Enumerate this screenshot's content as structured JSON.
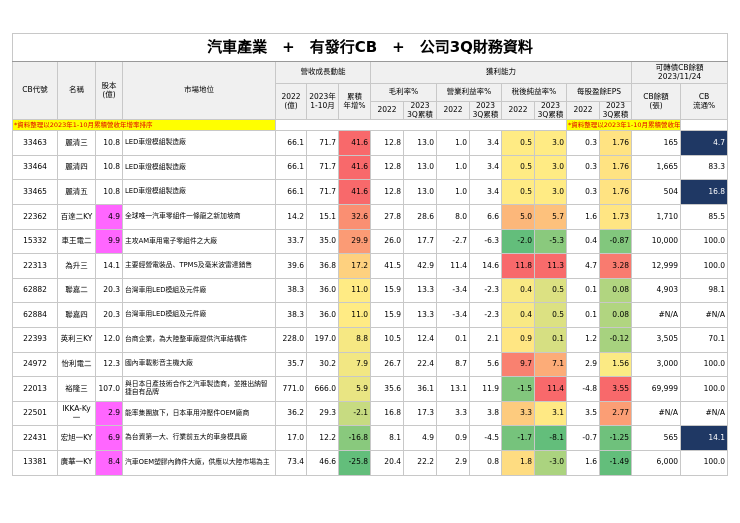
{
  "title": "汽車產業　+　有發行CB　+　公司3Q財務資料",
  "header": [
    "CB代號",
    "名稱",
    "股本\n(億)",
    "市場地位",
    "營收成長動能",
    "獲利能力",
    "可轉債CB餘額\n2023/11/24",
    "毛利率%",
    "營業利益率%",
    "稅後純益率%",
    "每股盈餘EPS",
    "2022\n(億)",
    "2023年\n1-10月",
    "累積\n年增%",
    "2022",
    "2023\n3Q累積",
    "2022",
    "2023\n3Q累積",
    "2022",
    "2023\n3Q累積",
    "2022",
    "2023\n3Q累積",
    "CB餘額\n(張)",
    "CB\n流通%"
  ],
  "notes": [
    "*資料整理以2023年1-10月累積營收年增率排序",
    "*資料整理以2023年1-10月累積營收年增率排序"
  ],
  "rows": [
    [
      "33463",
      "麗清三",
      "10.8",
      "LED車燈模組製造廠",
      "66.1",
      "71.7",
      "41.6",
      "12.8",
      "13.0",
      "1.0",
      "3.4",
      "0.5",
      "3.0",
      "0.3",
      "1.76",
      "165",
      "4.7"
    ],
    [
      "33464",
      "麗清四",
      "10.8",
      "LED車燈模組製造廠",
      "66.1",
      "71.7",
      "41.6",
      "12.8",
      "13.0",
      "1.0",
      "3.4",
      "0.5",
      "3.0",
      "0.3",
      "1.76",
      "1,665",
      "83.3"
    ],
    [
      "33465",
      "麗清五",
      "10.8",
      "LED車燈模組製造廠",
      "66.1",
      "71.7",
      "41.6",
      "12.8",
      "13.0",
      "1.0",
      "3.4",
      "0.5",
      "3.0",
      "0.3",
      "1.76",
      "504",
      "16.8"
    ],
    [
      "22362",
      "百達二KY",
      "4.9",
      "全球唯一汽車零組件一條龍之新加坡商",
      "14.2",
      "15.1",
      "32.6",
      "27.8",
      "28.6",
      "8.0",
      "6.6",
      "5.0",
      "5.7",
      "1.6",
      "1.73",
      "1,710",
      "85.5"
    ],
    [
      "15332",
      "車王電二",
      "9.9",
      "主攻AM車用電子零組件之大廠",
      "33.7",
      "35.0",
      "29.9",
      "26.0",
      "17.7",
      "-2.7",
      "-6.3",
      "-2.0",
      "-5.3",
      "0.4",
      "-0.87",
      "10,000",
      "100.0"
    ],
    [
      "22313",
      "為升三",
      "14.1",
      "主要經營電裝品、TPMS及毫米波雷達銷售",
      "39.6",
      "36.8",
      "17.2",
      "41.5",
      "42.9",
      "11.4",
      "14.6",
      "11.8",
      "11.3",
      "4.7",
      "3.28",
      "12,999",
      "100.0"
    ],
    [
      "62882",
      "聯嘉二",
      "20.3",
      "台灣車用LED模組及元件廠",
      "38.3",
      "36.0",
      "11.0",
      "15.9",
      "13.3",
      "-3.4",
      "-2.3",
      "0.4",
      "0.5",
      "0.1",
      "0.08",
      "4,903",
      "98.1"
    ],
    [
      "62884",
      "聯嘉四",
      "20.3",
      "台灣車用LED模組及元件廠",
      "38.3",
      "36.0",
      "11.0",
      "15.9",
      "13.3",
      "-3.4",
      "-2.3",
      "0.4",
      "0.5",
      "0.1",
      "0.08",
      "#N/A",
      "#N/A"
    ],
    [
      "22393",
      "英利三KY",
      "12.0",
      "台商企業，為大陸整車廠提供汽車結構件",
      "228.0",
      "197.0",
      "8.8",
      "10.5",
      "12.4",
      "0.1",
      "2.1",
      "0.9",
      "0.1",
      "1.2",
      "-0.12",
      "3,505",
      "70.1"
    ],
    [
      "24972",
      "怡利電二",
      "12.3",
      "國內車載影音主機大廠",
      "35.7",
      "30.2",
      "7.9",
      "26.7",
      "22.4",
      "8.7",
      "5.6",
      "9.7",
      "7.1",
      "2.9",
      "1.56",
      "3,000",
      "100.0"
    ],
    [
      "22013",
      "裕隆三",
      "107.0",
      "與日本日產技術合作之汽車製造商，並推出納智捷自有品牌",
      "771.0",
      "666.0",
      "5.9",
      "35.6",
      "36.1",
      "13.1",
      "11.9",
      "-1.5",
      "11.4",
      "-4.8",
      "3.55",
      "69,999",
      "100.0"
    ],
    [
      "22501",
      "IKKA-Ky一",
      "2.9",
      "能率集團旗下，日本車用沖壓件OEM廠商",
      "36.2",
      "29.3",
      "-2.1",
      "16.8",
      "17.3",
      "3.3",
      "3.8",
      "3.3",
      "3.1",
      "3.5",
      "2.77",
      "#N/A",
      "#N/A"
    ],
    [
      "22431",
      "宏旭一KY",
      "6.9",
      "為台資第一大、行業前五大的車身模具廠",
      "17.0",
      "12.2",
      "-16.8",
      "8.1",
      "4.9",
      "0.9",
      "-4.5",
      "-1.7",
      "-8.1",
      "-0.7",
      "-1.25",
      "565",
      "14.1"
    ],
    [
      "13381",
      "廣華一KY",
      "8.4",
      "汽車OEM塑膠內飾件大廠，供應以大陸市場為主",
      "73.4",
      "46.6",
      "-25.8",
      "20.4",
      "22.2",
      "2.9",
      "0.8",
      "1.8",
      "-3.0",
      "1.6",
      "-1.49",
      "6,000",
      "100.0"
    ]
  ]
}
